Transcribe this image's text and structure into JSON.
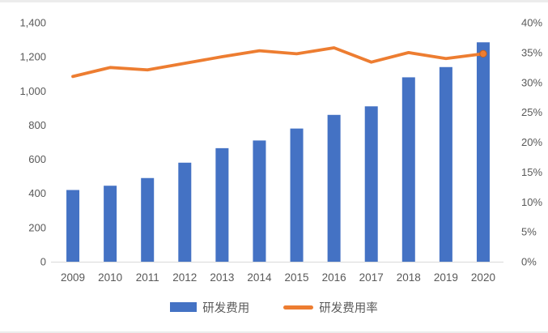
{
  "page": {
    "background": "#ffffff",
    "edge_color": "#ececec"
  },
  "chart_data": {
    "type": "combo-bar-line",
    "title": "",
    "xlabel": "",
    "ylabel": "",
    "grid": false,
    "legend_position": "bottom",
    "text_color": "#595959",
    "axis_line_color": "#d9d9d9",
    "categories": [
      "2009",
      "2010",
      "2011",
      "2012",
      "2013",
      "2014",
      "2015",
      "2016",
      "2017",
      "2018",
      "2019",
      "2020"
    ],
    "series": [
      {
        "name": "研发费用",
        "type": "bar",
        "axis": "left",
        "color": "#4472C4",
        "values": [
          420,
          445,
          490,
          580,
          665,
          710,
          780,
          860,
          910,
          1080,
          1140,
          1285
        ]
      },
      {
        "name": "研发费用率",
        "type": "line",
        "axis": "right",
        "color": "#ED7D31",
        "end_marker": true,
        "values": [
          31.0,
          32.5,
          32.1,
          33.2,
          34.3,
          35.3,
          34.8,
          35.8,
          33.4,
          35.0,
          34.0,
          34.8
        ]
      }
    ],
    "left_axis": {
      "min": 0,
      "max": 1400,
      "step": 200,
      "tick_labels": [
        "1,400",
        "1,200",
        "1,000",
        "800",
        "600",
        "400",
        "200",
        "0"
      ]
    },
    "right_axis": {
      "min": 0,
      "max": 40,
      "step": 5,
      "tick_labels": [
        "40%",
        "35%",
        "30%",
        "25%",
        "20%",
        "15%",
        "10%",
        "5%",
        "0%"
      ]
    }
  }
}
